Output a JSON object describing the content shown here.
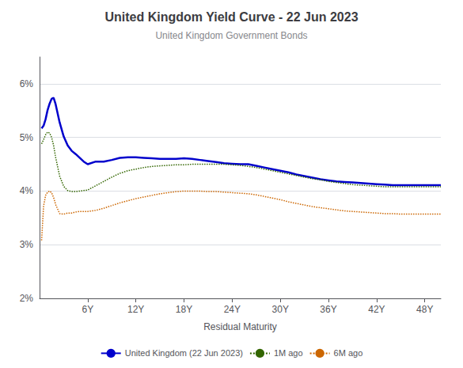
{
  "chart_data": {
    "type": "line",
    "title": "United Kingdom Yield Curve - 22 Jun 2023",
    "subtitle": "United Kingdom Government Bonds",
    "xlabel": "Residual Maturity",
    "xlim": [
      0,
      50
    ],
    "xticks": [
      {
        "value": 6,
        "label": "6Y"
      },
      {
        "value": 12,
        "label": "12Y"
      },
      {
        "value": 18,
        "label": "18Y"
      },
      {
        "value": 24,
        "label": "24Y"
      },
      {
        "value": 30,
        "label": "30Y"
      },
      {
        "value": 36,
        "label": "36Y"
      },
      {
        "value": 42,
        "label": "42Y"
      },
      {
        "value": 48,
        "label": "48Y"
      }
    ],
    "ylim": [
      2.0,
      6.5
    ],
    "yticks": [
      {
        "value": 2.0,
        "label": "2%"
      },
      {
        "value": 3.0,
        "label": "3%"
      },
      {
        "value": 4.0,
        "label": "4%"
      },
      {
        "value": 5.0,
        "label": "5%"
      },
      {
        "value": 6.0,
        "label": "6%"
      }
    ],
    "grid": true,
    "legend": "bottom",
    "x": [
      0.25,
      0.5,
      0.75,
      1.0,
      1.25,
      1.5,
      1.75,
      2.0,
      2.5,
      3.0,
      3.5,
      4.0,
      4.5,
      5.0,
      5.5,
      6.0,
      7.0,
      8.0,
      9.0,
      10.0,
      11.0,
      12.0,
      13.0,
      14.0,
      15.0,
      16.0,
      17.0,
      18.0,
      19.0,
      20.0,
      21.0,
      22.0,
      23.0,
      24.0,
      25.0,
      26.0,
      27.0,
      28.0,
      29.0,
      30.0,
      31.0,
      32.0,
      33.0,
      34.0,
      35.0,
      36.0,
      37.0,
      38.0,
      39.0,
      40.0,
      41.0,
      42.0,
      43.0,
      44.0,
      45.0,
      46.0,
      47.0,
      48.0,
      49.0,
      50.0
    ],
    "series": [
      {
        "name": "United Kingdom (22 Jun 2023)",
        "color": "#0000cc",
        "line_style": "solid",
        "values": [
          5.17,
          5.22,
          5.34,
          5.51,
          5.63,
          5.72,
          5.74,
          5.62,
          5.28,
          5.02,
          4.85,
          4.75,
          4.69,
          4.62,
          4.55,
          4.5,
          4.55,
          4.55,
          4.58,
          4.62,
          4.63,
          4.63,
          4.62,
          4.61,
          4.6,
          4.6,
          4.6,
          4.61,
          4.6,
          4.58,
          4.56,
          4.54,
          4.52,
          4.51,
          4.5,
          4.5,
          4.47,
          4.44,
          4.41,
          4.38,
          4.35,
          4.31,
          4.28,
          4.25,
          4.22,
          4.2,
          4.18,
          4.17,
          4.16,
          4.15,
          4.14,
          4.13,
          4.12,
          4.11,
          4.11,
          4.11,
          4.11,
          4.11,
          4.11,
          4.11
        ]
      },
      {
        "name": "1M ago",
        "color": "#336600",
        "line_style": "dotted",
        "values": [
          4.88,
          4.96,
          5.05,
          5.1,
          5.08,
          5.0,
          4.85,
          4.63,
          4.28,
          4.09,
          4.01,
          3.99,
          3.99,
          4.0,
          4.01,
          4.02,
          4.1,
          4.18,
          4.26,
          4.33,
          4.38,
          4.41,
          4.44,
          4.46,
          4.47,
          4.48,
          4.49,
          4.49,
          4.5,
          4.5,
          4.5,
          4.5,
          4.5,
          4.49,
          4.48,
          4.46,
          4.44,
          4.41,
          4.38,
          4.35,
          4.32,
          4.29,
          4.26,
          4.23,
          4.21,
          4.18,
          4.16,
          4.14,
          4.12,
          4.11,
          4.1,
          4.09,
          4.08,
          4.08,
          4.08,
          4.08,
          4.08,
          4.08,
          4.08,
          4.08
        ]
      },
      {
        "name": "6M ago",
        "color": "#cc6600",
        "line_style": "dotted",
        "values": [
          3.08,
          3.72,
          3.92,
          3.98,
          4.0,
          3.97,
          3.88,
          3.75,
          3.58,
          3.57,
          3.59,
          3.59,
          3.61,
          3.62,
          3.62,
          3.62,
          3.64,
          3.68,
          3.73,
          3.78,
          3.82,
          3.86,
          3.89,
          3.92,
          3.95,
          3.97,
          3.99,
          4.0,
          4.0,
          4.0,
          3.99,
          3.99,
          3.98,
          3.97,
          3.96,
          3.95,
          3.93,
          3.9,
          3.87,
          3.84,
          3.8,
          3.77,
          3.74,
          3.71,
          3.69,
          3.67,
          3.65,
          3.63,
          3.62,
          3.61,
          3.6,
          3.59,
          3.58,
          3.58,
          3.57,
          3.57,
          3.57,
          3.57,
          3.57,
          3.57
        ]
      }
    ]
  }
}
